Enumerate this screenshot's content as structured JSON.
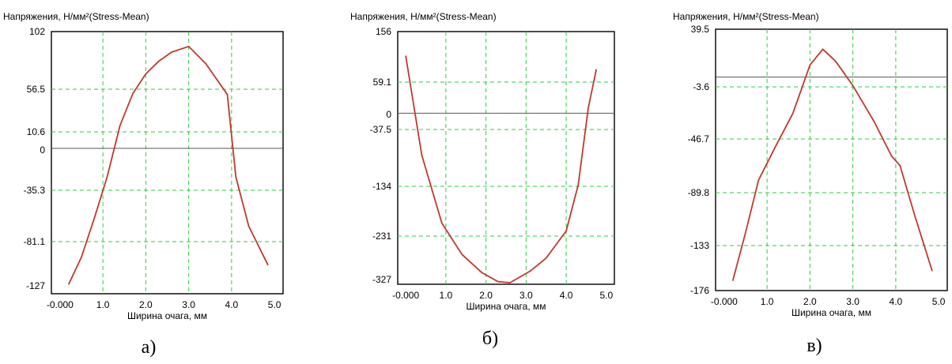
{
  "chart_data": [
    {
      "type": "line",
      "ylabel": "Напряжения, Н/мм²(Stress-Mean)",
      "xlabel": "Ширина очага, мм",
      "subtitle": "а)",
      "x_ticks": [
        "-0.000",
        "1.0",
        "2.0",
        "3.0",
        "4.0",
        "5.0"
      ],
      "y_ticks": [
        "102",
        "56.5",
        "10.6",
        "0",
        "-35.3",
        "-81.1",
        "-127"
      ],
      "ylim": [
        -127,
        102
      ],
      "xlim": [
        -0.2,
        5.2
      ],
      "grid": true,
      "line_color": "#c0392b",
      "series": [
        {
          "x": [
            0.2,
            0.5,
            0.8,
            1.1,
            1.4,
            1.7,
            2.0,
            2.3,
            2.6,
            3.0,
            3.4,
            3.9,
            4.1,
            4.4,
            4.85
          ],
          "y": [
            -119,
            -95,
            -61,
            -25,
            20,
            48,
            65,
            76,
            84,
            89,
            74,
            47,
            -25,
            -68,
            -102
          ]
        }
      ]
    },
    {
      "type": "line",
      "ylabel": "Напряжения, Н/мм²(Stress-Mean)",
      "xlabel": "Ширина очага, мм",
      "subtitle": "б)",
      "x_ticks": [
        "-0.000",
        "1.0",
        "2.0",
        "3.0",
        "4.0",
        "5.0"
      ],
      "y_ticks": [
        "156",
        "59.1",
        "0",
        "-37.5",
        "-134",
        "-231",
        "-327"
      ],
      "ylim": [
        -327,
        156
      ],
      "xlim": [
        -0.2,
        5.2
      ],
      "grid": true,
      "line_color": "#c0392b",
      "series": [
        {
          "x": [
            0.0,
            0.4,
            0.9,
            1.4,
            1.9,
            2.3,
            2.6,
            3.1,
            3.5,
            4.0,
            4.3,
            4.55,
            4.75
          ],
          "y": [
            110,
            -80,
            -210,
            -270,
            -305,
            -322,
            -324,
            -302,
            -277,
            -225,
            -137,
            10,
            84
          ]
        }
      ]
    },
    {
      "type": "line",
      "ylabel": "Напряжения, Н/мм²(Stress-Mean)",
      "xlabel": "Ширина очага, мм",
      "subtitle": "в)",
      "x_ticks": [
        "-0.000",
        "1.0",
        "2.0",
        "3.0",
        "4.0",
        "5.0"
      ],
      "y_ticks": [
        "39.5",
        "-3.6",
        "-46.7",
        "-89.8",
        "-133",
        "-176"
      ],
      "ylim": [
        -176,
        39.5
      ],
      "xlim": [
        -0.2,
        5.2
      ],
      "grid": true,
      "line_color": "#c0392b",
      "series": [
        {
          "x": [
            0.2,
            0.5,
            0.8,
            1.2,
            1.6,
            2.0,
            2.3,
            2.6,
            3.0,
            3.5,
            3.9,
            4.1,
            4.45,
            4.85
          ],
          "y": [
            -168,
            -128,
            -85,
            -57,
            -30,
            10,
            23,
            13,
            -7,
            -37,
            -65,
            -73,
            -115,
            -160
          ]
        }
      ]
    }
  ]
}
